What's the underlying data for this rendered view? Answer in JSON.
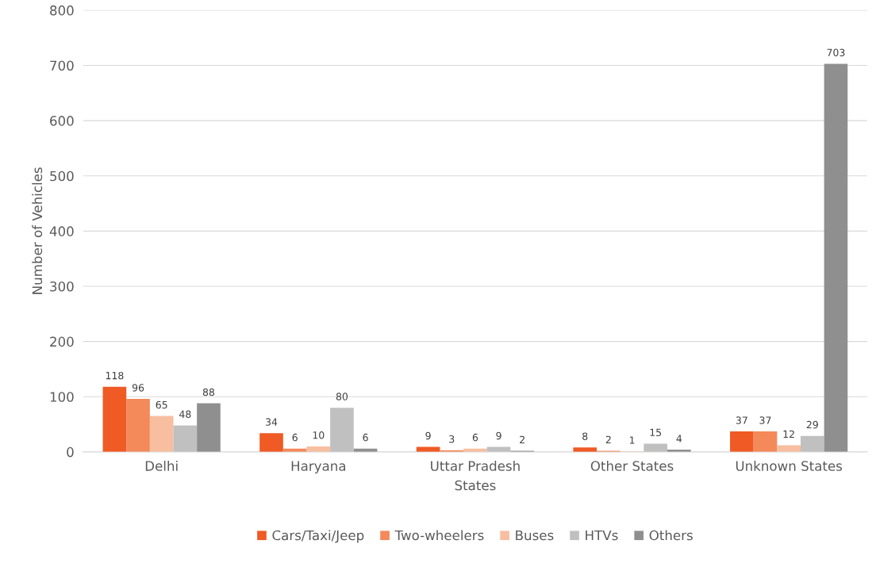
{
  "chart_data": {
    "type": "bar",
    "xlabel": "States",
    "ylabel": "Number of Vehicles",
    "categories": [
      "Delhi",
      "Haryana",
      "Uttar Pradesh",
      "Other States",
      "Unknown States"
    ],
    "series": [
      {
        "name": "Cars/Taxi/Jeep",
        "color": "#f05a24",
        "values": [
          118,
          34,
          9,
          8,
          37
        ]
      },
      {
        "name": "Two-wheelers",
        "color": "#f4895a",
        "values": [
          96,
          6,
          3,
          2,
          37
        ]
      },
      {
        "name": "Buses",
        "color": "#f7bea0",
        "values": [
          65,
          10,
          6,
          1,
          12
        ]
      },
      {
        "name": "HTVs",
        "color": "#c0c0c0",
        "values": [
          48,
          80,
          9,
          15,
          29
        ]
      },
      {
        "name": "Others",
        "color": "#8f8f8f",
        "values": [
          88,
          6,
          2,
          4,
          703
        ]
      }
    ],
    "ylim": [
      0,
      800
    ],
    "yticks": [
      0,
      100,
      200,
      300,
      400,
      500,
      600,
      700,
      800
    ],
    "grid": "y",
    "legend": "bottom",
    "data_labels": true
  }
}
